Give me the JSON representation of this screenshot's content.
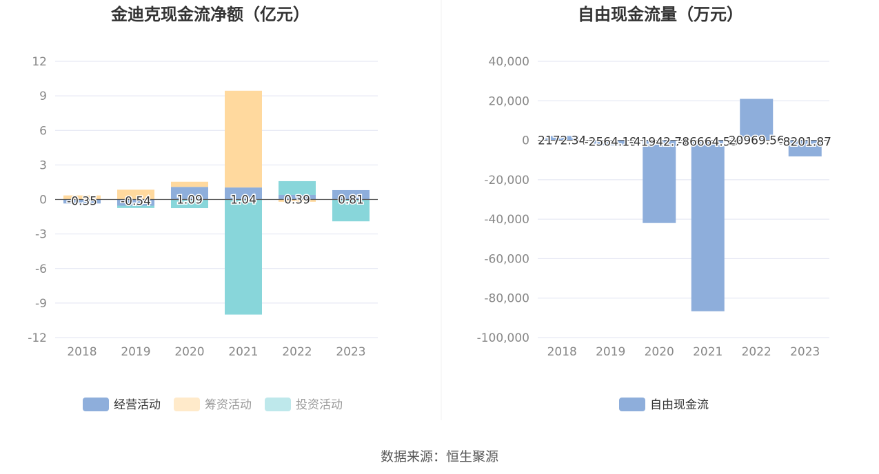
{
  "footer": {
    "source": "数据来源：恒生聚源"
  },
  "colors": {
    "operating": "#8eaedb",
    "financing": "#ffd99e",
    "investing": "#88d6da",
    "fcf": "#8eaedb",
    "grid": "#e0e3f1",
    "axis": "#555555",
    "tick_text": "#888888",
    "title_text": "#333333"
  },
  "chart_data": [
    {
      "type": "bar",
      "title": "金迪克现金流净额（亿元）",
      "stacked": true,
      "categories": [
        "2018",
        "2019",
        "2020",
        "2021",
        "2022",
        "2023"
      ],
      "ylim": [
        -12,
        12
      ],
      "yticks": [
        "12",
        "9",
        "6",
        "3",
        "0",
        "-3",
        "-6",
        "-9",
        "-12"
      ],
      "grid": true,
      "legend_position": "bottom",
      "series": [
        {
          "name": "经营活动",
          "color_key": "operating",
          "values": [
            -0.35,
            -0.54,
            1.09,
            1.04,
            0.39,
            0.81
          ],
          "labels": [
            "-0.35",
            "-0.54",
            "1.09",
            "1.04",
            "0.39",
            "0.81"
          ]
        },
        {
          "name": "筹资活动",
          "color_key": "financing",
          "values": [
            0.35,
            0.85,
            0.45,
            8.4,
            -0.2,
            0
          ]
        },
        {
          "name": "投资活动",
          "color_key": "investing",
          "values": [
            0,
            -0.2,
            -0.75,
            -10,
            1.2,
            -1.9
          ]
        }
      ]
    },
    {
      "type": "bar",
      "title": "自由现金流量（万元）",
      "stacked": false,
      "categories": [
        "2018",
        "2019",
        "2020",
        "2021",
        "2022",
        "2023"
      ],
      "ylim": [
        -100000,
        40000
      ],
      "yticks": [
        "40,000",
        "20,000",
        "0",
        "-20,000",
        "-40,000",
        "-60,000",
        "-80,000",
        "-100,000"
      ],
      "grid": true,
      "legend_position": "bottom",
      "series": [
        {
          "name": "自由现金流",
          "color_key": "fcf",
          "values": [
            2172.34,
            -2564.19,
            -41942.71,
            -86664.53,
            20969.56,
            -8201.87
          ],
          "labels": [
            "2172.34",
            "-2564.19",
            "-41942.71",
            "-86664.53",
            "20969.56",
            "-8201.87"
          ]
        }
      ]
    }
  ]
}
